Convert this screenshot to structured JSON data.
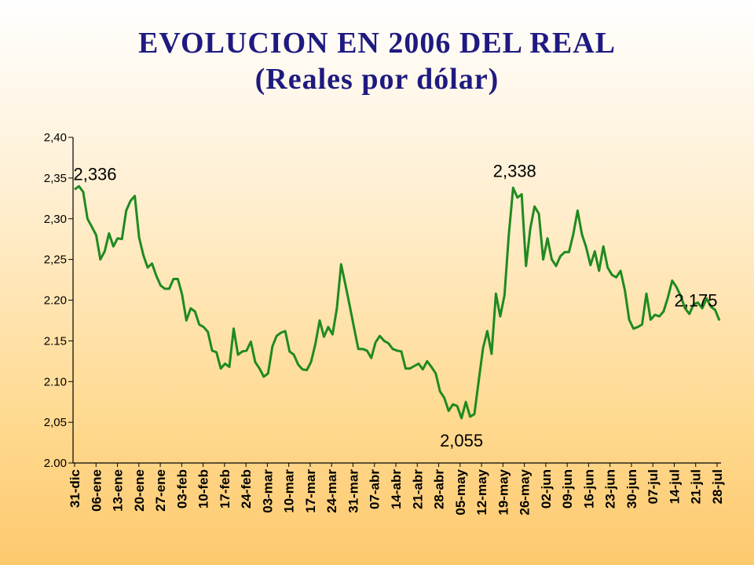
{
  "title": {
    "line1": "EVOLUCION EN 2006 DEL REAL",
    "line2": "(Reales por dólar)"
  },
  "colors": {
    "title": "#1f1a80",
    "series": "#1f8a1f",
    "axis": "#000000"
  },
  "chart_data": {
    "type": "line",
    "title": "EVOLUCION EN 2006 DEL REAL",
    "subtitle": "(Reales por dólar)",
    "xlabel": "",
    "ylabel": "",
    "ylim": [
      2.0,
      2.4
    ],
    "y_ticks": [
      "2.00",
      "2,05",
      "2.10",
      "2.15",
      "2.20",
      "2,25",
      "2,30",
      "2,35",
      "2,40"
    ],
    "x_ticks": [
      "31-dic",
      "06-ene",
      "13-ene",
      "20-ene",
      "27-ene",
      "03-feb",
      "10-feb",
      "17-feb",
      "24-feb",
      "03-mar",
      "10-mar",
      "17-mar",
      "24-mar",
      "31-mar",
      "07-abr",
      "14-abr",
      "21-abr",
      "28-abr",
      "05-may",
      "12-may",
      "19-may",
      "26-may",
      "02-jun",
      "09-jun",
      "16-jun",
      "23-jun",
      "30-jun",
      "07-jul",
      "14-jul",
      "21-jul",
      "28-jul"
    ],
    "grid": false,
    "series": [
      {
        "values": [
          2.336,
          2.34,
          2.333,
          2.3,
          2.29,
          2.28,
          2.25,
          2.26,
          2.282,
          2.266,
          2.276,
          2.275,
          2.31,
          2.322,
          2.328,
          2.277,
          2.255,
          2.24,
          2.245,
          2.23,
          2.218,
          2.214,
          2.214,
          2.226,
          2.226,
          2.207,
          2.175,
          2.19,
          2.186,
          2.17,
          2.167,
          2.161,
          2.138,
          2.136,
          2.116,
          2.122,
          2.118,
          2.165,
          2.133,
          2.137,
          2.138,
          2.149,
          2.124,
          2.116,
          2.106,
          2.11,
          2.143,
          2.156,
          2.16,
          2.162,
          2.137,
          2.133,
          2.121,
          2.115,
          2.114,
          2.124,
          2.146,
          2.175,
          2.155,
          2.167,
          2.158,
          2.19,
          2.244,
          2.219,
          2.193,
          2.166,
          2.14,
          2.14,
          2.138,
          2.129,
          2.148,
          2.156,
          2.15,
          2.147,
          2.14,
          2.138,
          2.137,
          2.116,
          2.116,
          2.119,
          2.122,
          2.115,
          2.125,
          2.118,
          2.11,
          2.088,
          2.08,
          2.064,
          2.072,
          2.07,
          2.055,
          2.075,
          2.057,
          2.06,
          2.101,
          2.141,
          2.162,
          2.134,
          2.208,
          2.18,
          2.206,
          2.28,
          2.338,
          2.326,
          2.33,
          2.242,
          2.288,
          2.315,
          2.306,
          2.25,
          2.276,
          2.25,
          2.242,
          2.254,
          2.259,
          2.259,
          2.281,
          2.31,
          2.281,
          2.265,
          2.243,
          2.26,
          2.236,
          2.266,
          2.24,
          2.231,
          2.228,
          2.236,
          2.212,
          2.176,
          2.165,
          2.167,
          2.17,
          2.208,
          2.176,
          2.182,
          2.18,
          2.186,
          2.203,
          2.224,
          2.216,
          2.205,
          2.19,
          2.183,
          2.195,
          2.197,
          2.19,
          2.202,
          2.192,
          2.188,
          2.175
        ]
      }
    ],
    "annotations": [
      {
        "text": "2,336",
        "index": 0
      },
      {
        "text": "2,055",
        "index": 90
      },
      {
        "text": "2,338",
        "index": 102
      },
      {
        "text": "2,175",
        "index": 150
      }
    ]
  }
}
